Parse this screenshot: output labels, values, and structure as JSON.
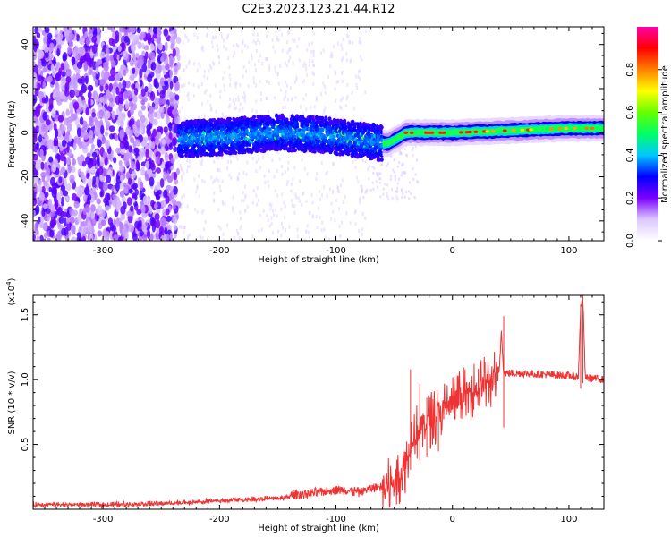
{
  "figure": {
    "title": "C2E3.2023.123.21.44.R12"
  },
  "chart_data": [
    {
      "type": "heatmap",
      "id": "spectrogram",
      "xlabel": "Height of straight line (km)",
      "ylabel": "Frequency (Hz)",
      "xlim": [
        -360,
        130
      ],
      "ylim": [
        -49,
        48
      ],
      "xticks": [
        -300,
        -200,
        -100,
        0,
        100
      ],
      "yticks": [
        -40,
        -20,
        0,
        20,
        40
      ],
      "grid": false,
      "colorbar": {
        "label": "Normalized spectral amplitude",
        "range": [
          0,
          1
        ],
        "ticks": [
          0.0,
          0.2,
          0.4,
          0.6,
          0.8
        ],
        "colormap": [
          "#ffffff",
          "#dcc8ff",
          "#7a00ff",
          "#0000ff",
          "#00c8ff",
          "#00ff66",
          "#66ff00",
          "#ffff00",
          "#ff8000",
          "#ff0000",
          "#ff00aa"
        ]
      },
      "regions": [
        {
          "x": [
            -360,
            -235
          ],
          "freq_center": 0,
          "freq_halfwidth": 49,
          "amplitude": 0.15,
          "note_type": "broadband noise"
        },
        {
          "x": [
            -235,
            -60
          ],
          "freq_center": 0,
          "freq_halfwidth": 8,
          "amplitude": 0.3
        },
        {
          "x": [
            -60,
            130
          ],
          "freq_center": 1,
          "freq_halfwidth": 4,
          "amplitude": 0.75
        }
      ],
      "ridge": [
        {
          "x": -235,
          "f": -3
        },
        {
          "x": -200,
          "f": -2
        },
        {
          "x": -150,
          "f": 0
        },
        {
          "x": -110,
          "f": -1
        },
        {
          "x": -70,
          "f": -4
        },
        {
          "x": -55,
          "f": -5
        },
        {
          "x": -40,
          "f": 0
        },
        {
          "x": -20,
          "f": 0
        },
        {
          "x": 0,
          "f": 0
        },
        {
          "x": 50,
          "f": 1
        },
        {
          "x": 100,
          "f": 2
        },
        {
          "x": 130,
          "f": 2
        }
      ]
    },
    {
      "type": "line",
      "id": "snr",
      "xlabel": "Height of straight line (km)",
      "ylabel": "SNR (10 * v/v)",
      "yscale_label": "(x10",
      "yscale_exponent": "4",
      "xlim": [
        -360,
        130
      ],
      "ylim": [
        0,
        1.65
      ],
      "xticks": [
        -300,
        -200,
        -100,
        0,
        100
      ],
      "yticks": [
        0.5,
        1.0,
        1.5
      ],
      "ytick_labels": [
        "0.5",
        "1.0",
        "1.5"
      ],
      "grid": false,
      "series": [
        {
          "color": "#ee3333",
          "x": [
            -360,
            -300,
            -250,
            -220,
            -200,
            -180,
            -150,
            -120,
            -100,
            -80,
            -60,
            -50,
            -40,
            -35,
            -30,
            -25,
            -20,
            -15,
            -10,
            0,
            10,
            20,
            30,
            35,
            40,
            42,
            44,
            46,
            50,
            60,
            80,
            100,
            108,
            110,
            112,
            114,
            116,
            120,
            130
          ],
          "y": [
            0.02,
            0.02,
            0.03,
            0.04,
            0.05,
            0.06,
            0.07,
            0.09,
            0.12,
            0.1,
            0.15,
            0.2,
            0.35,
            0.55,
            0.6,
            0.65,
            0.68,
            0.72,
            0.76,
            0.82,
            0.88,
            0.93,
            0.97,
            1.0,
            1.03,
            1.38,
            1.05,
            1.05,
            1.05,
            1.05,
            1.04,
            1.03,
            1.02,
            1.55,
            1.62,
            1.02,
            1.01,
            1.01,
            1.0
          ]
        }
      ],
      "spikes": [
        {
          "x": -36,
          "y": 1.08
        },
        {
          "x": -28,
          "y": 0.97
        },
        {
          "x": -22,
          "y": 0.86
        },
        {
          "x": -12,
          "y": 0.82
        },
        {
          "x": 44,
          "y": 1.49
        },
        {
          "x": 110,
          "y": 1.58
        },
        {
          "x": 112,
          "y": 1.65
        }
      ]
    }
  ]
}
